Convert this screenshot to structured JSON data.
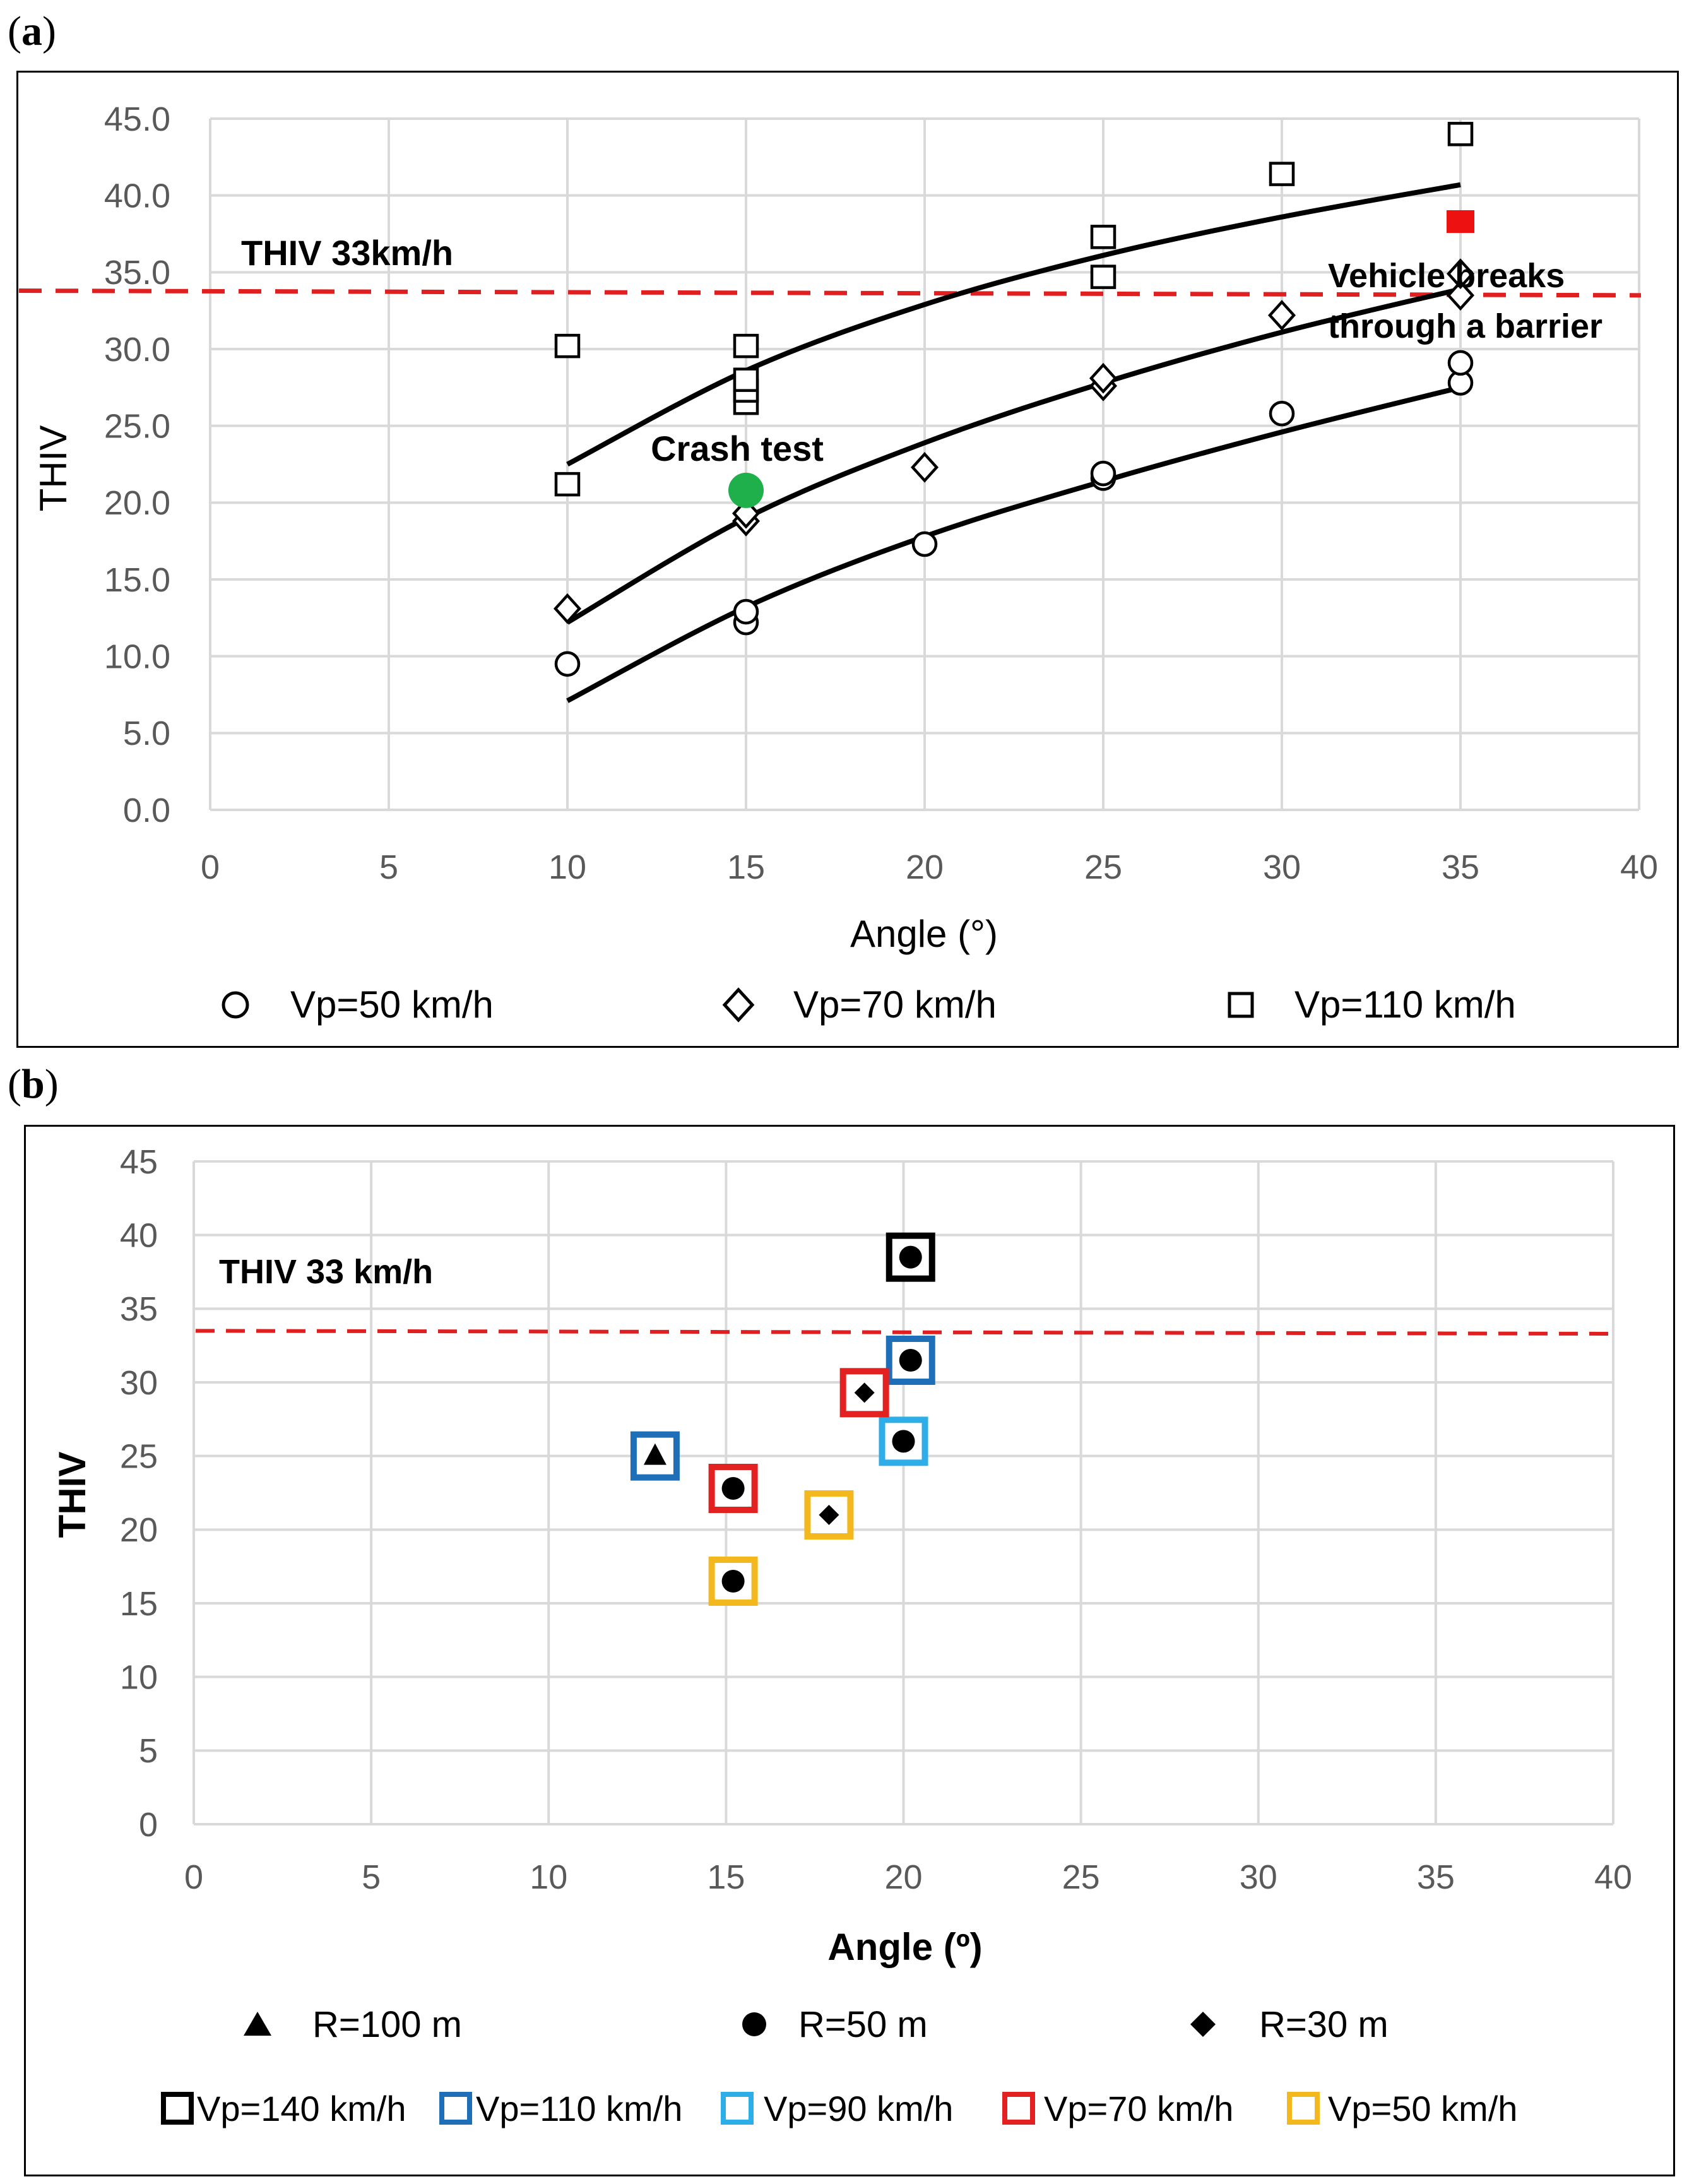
{
  "panels": [
    {
      "label_open": "(",
      "label_letter": "a",
      "label_close": ")"
    },
    {
      "label_open": "(",
      "label_letter": "b",
      "label_close": ")"
    }
  ],
  "colors": {
    "grid": "#d9d9d9",
    "axis_text": "#595959",
    "threshold": "#e02020",
    "crash_test": "#1fb04c",
    "breakthrough": "#ee1111",
    "vp140": "#000000",
    "vp110": "#1f6fb8",
    "vp90": "#2eaee8",
    "vp70": "#e32121",
    "vp50": "#f2b81d"
  },
  "chart_data": [
    {
      "type": "scatter",
      "panel": "a",
      "xlabel": "Angle (°)",
      "ylabel": "THIV",
      "xlim": [
        0,
        40
      ],
      "ylim": [
        0,
        45
      ],
      "x_ticks": [
        "0",
        "5",
        "10",
        "15",
        "20",
        "25",
        "30",
        "35",
        "40"
      ],
      "y_ticks": [
        "0.0",
        "5.0",
        "10.0",
        "15.0",
        "20.0",
        "25.0",
        "30.0",
        "35.0",
        "40.0",
        "45.0"
      ],
      "threshold": {
        "label": "THIV 33km/h",
        "y_start": 33.8,
        "y_end": 33.5
      },
      "series": [
        {
          "name": "Vp=50 km/h",
          "marker": "circle",
          "points": [
            [
              10,
              9.5
            ],
            [
              15,
              12.2
            ],
            [
              15,
              12.9
            ],
            [
              20,
              17.3
            ],
            [
              25,
              21.6
            ],
            [
              25,
              21.9
            ],
            [
              30,
              25.8
            ],
            [
              35,
              27.8
            ],
            [
              35,
              29.1
            ]
          ],
          "trend": [
            [
              10,
              7.1
            ],
            [
              15,
              13.2
            ],
            [
              20,
              17.8
            ],
            [
              25,
              21.4
            ],
            [
              30,
              24.6
            ],
            [
              35,
              27.5
            ]
          ]
        },
        {
          "name": "Vp=70 km/h",
          "marker": "diamond",
          "points": [
            [
              10,
              13.1
            ],
            [
              15,
              18.8
            ],
            [
              15,
              19.3
            ],
            [
              20,
              22.3
            ],
            [
              25,
              27.6
            ],
            [
              25,
              28.1
            ],
            [
              30,
              32.2
            ],
            [
              35,
              33.5
            ],
            [
              35,
              34.9
            ]
          ],
          "trend": [
            [
              10,
              12.2
            ],
            [
              15,
              19.0
            ],
            [
              20,
              23.9
            ],
            [
              25,
              27.8
            ],
            [
              30,
              31.1
            ],
            [
              35,
              33.9
            ]
          ]
        },
        {
          "name": "Vp=110 km/h",
          "marker": "square",
          "points": [
            [
              10,
              21.2
            ],
            [
              10,
              30.2
            ],
            [
              15,
              26.5
            ],
            [
              15,
              27.3
            ],
            [
              15,
              28.0
            ],
            [
              15,
              30.2
            ],
            [
              25,
              34.7
            ],
            [
              25,
              37.3
            ],
            [
              30,
              41.4
            ],
            [
              35,
              44.0
            ]
          ],
          "trend": [
            [
              10,
              22.5
            ],
            [
              15,
              28.6
            ],
            [
              20,
              32.9
            ],
            [
              25,
              36.1
            ],
            [
              30,
              38.6
            ],
            [
              35,
              40.7
            ]
          ]
        }
      ],
      "annotations": {
        "crash_test": {
          "label": "Crash test",
          "x": 15,
          "y": 20.8
        },
        "breakthrough": {
          "label_line1": "Vehicle breaks",
          "label_line2": "through a barrier",
          "x": 35,
          "y": 38.3
        }
      }
    },
    {
      "type": "scatter",
      "panel": "b",
      "xlabel": "Angle (º)",
      "ylabel": "THIV",
      "xlim": [
        0,
        40
      ],
      "ylim": [
        0,
        45
      ],
      "x_ticks": [
        "0",
        "5",
        "10",
        "15",
        "20",
        "25",
        "30",
        "35",
        "40"
      ],
      "y_ticks": [
        "0",
        "5",
        "10",
        "15",
        "20",
        "25",
        "30",
        "35",
        "40",
        "45"
      ],
      "threshold": {
        "label": "THIV 33 km/h",
        "y_start": 33.5,
        "y_end": 33.3
      },
      "points": [
        {
          "x": 20.2,
          "y": 38.5,
          "radius": "R=50 m",
          "speed": "Vp=140 km/h"
        },
        {
          "x": 20.2,
          "y": 31.5,
          "radius": "R=50 m",
          "speed": "Vp=110 km/h"
        },
        {
          "x": 13.0,
          "y": 25.0,
          "radius": "R=100 m",
          "speed": "Vp=110 km/h"
        },
        {
          "x": 20.0,
          "y": 26.0,
          "radius": "R=50 m",
          "speed": "Vp=90 km/h"
        },
        {
          "x": 18.9,
          "y": 29.3,
          "radius": "R=30 m",
          "speed": "Vp=70 km/h"
        },
        {
          "x": 15.2,
          "y": 22.8,
          "radius": "R=50 m",
          "speed": "Vp=70 km/h"
        },
        {
          "x": 17.9,
          "y": 21.0,
          "radius": "R=30 m",
          "speed": "Vp=50 km/h"
        },
        {
          "x": 15.2,
          "y": 16.5,
          "radius": "R=50 m",
          "speed": "Vp=50 km/h"
        }
      ],
      "legend_shapes": [
        {
          "label": "R=100 m",
          "marker": "triangle"
        },
        {
          "label": "R=50 m",
          "marker": "circle"
        },
        {
          "label": "R=30 m",
          "marker": "diamond"
        }
      ],
      "legend_speeds": [
        {
          "label": "Vp=140 km/h",
          "color": "#000000"
        },
        {
          "label": "Vp=110 km/h",
          "color": "#1f6fb8"
        },
        {
          "label": "Vp=90 km/h",
          "color": "#2eaee8"
        },
        {
          "label": "Vp=70 km/h",
          "color": "#e32121"
        },
        {
          "label": "Vp=50 km/h",
          "color": "#f2b81d"
        }
      ]
    }
  ]
}
